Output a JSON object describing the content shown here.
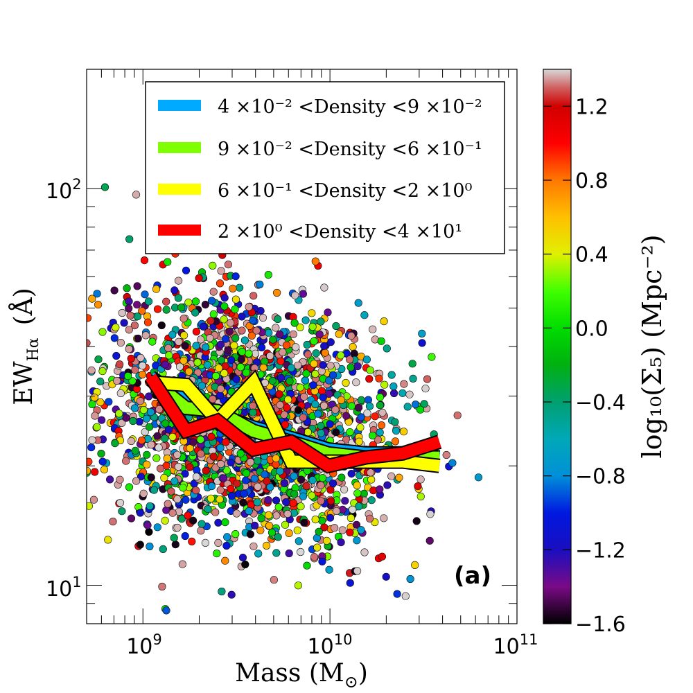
{
  "chart_data": {
    "type": "scatter",
    "xscale": "log",
    "yscale": "log",
    "xlim": [
      500000000,
      100000000000
    ],
    "ylim": [
      8,
      200
    ],
    "x_ticks": [
      {
        "value": 1000000000,
        "mantissa": "10",
        "exponent": "9"
      },
      {
        "value": 10000000000,
        "mantissa": "10",
        "exponent": "10"
      },
      {
        "value": 100000000000,
        "mantissa": "10",
        "exponent": "11"
      }
    ],
    "y_ticks": [
      {
        "value": 10,
        "mantissa": "10",
        "exponent": "1"
      },
      {
        "value": 100,
        "mantissa": "10",
        "exponent": "2"
      }
    ],
    "xlabel": {
      "main": "Mass (M",
      "sub": "⊙",
      "close": ")"
    },
    "ylabel": {
      "main": "EW",
      "sub": "Hα",
      "unit": "(Å)"
    },
    "panel_tag": "(a)",
    "colorbar": {
      "range": [
        -1.6,
        1.4
      ],
      "ticks": [
        "−1.6",
        "−1.2",
        "−0.8",
        "−0.4",
        "0.0",
        "0.4",
        "0.8",
        "1.2"
      ],
      "tick_values": [
        -1.6,
        -1.2,
        -0.8,
        -0.4,
        0.0,
        0.4,
        0.8,
        1.2
      ],
      "label": "log₁₀(Σ₅) (Mpc⁻²)",
      "stops": [
        {
          "v": -1.6,
          "color": "#000000"
        },
        {
          "v": -1.4,
          "color": "#7a0a86"
        },
        {
          "v": -1.2,
          "color": "#1a0ec0"
        },
        {
          "v": -1.0,
          "color": "#0018e0"
        },
        {
          "v": -0.8,
          "color": "#0090d8"
        },
        {
          "v": -0.6,
          "color": "#00a8b8"
        },
        {
          "v": -0.4,
          "color": "#00a070"
        },
        {
          "v": -0.2,
          "color": "#00b010"
        },
        {
          "v": 0.0,
          "color": "#00dc00"
        },
        {
          "v": 0.2,
          "color": "#40ff00"
        },
        {
          "v": 0.4,
          "color": "#e0f000"
        },
        {
          "v": 0.6,
          "color": "#ffc000"
        },
        {
          "v": 0.8,
          "color": "#ff7800"
        },
        {
          "v": 1.0,
          "color": "#ff0000"
        },
        {
          "v": 1.2,
          "color": "#d00000"
        },
        {
          "v": 1.3,
          "color": "#d06060"
        },
        {
          "v": 1.4,
          "color": "#d8d8d8"
        }
      ]
    },
    "series": [
      {
        "name": "4 ×10⁻² <Density <9 ×10⁻²",
        "color": "#00aaff",
        "x": [
          1100000000,
          1700000000,
          2500000000,
          3900000000,
          6200000000,
          9800000000,
          15500000000,
          24500000000,
          38500000000
        ],
        "y": [
          33.5,
          29,
          27,
          25,
          23.5,
          22,
          21.5,
          21.5,
          21
        ]
      },
      {
        "name": "9 ×10⁻² <Density <6 ×10⁻¹",
        "color": "#80ff00",
        "x": [
          1100000000,
          1700000000,
          2500000000,
          3900000000,
          6200000000,
          9800000000,
          15500000000,
          24500000000,
          38500000000
        ],
        "y": [
          33,
          28,
          27.5,
          24.5,
          23,
          21.5,
          21,
          21,
          21
        ]
      },
      {
        "name": "6 ×10⁻¹ <Density <2 ×10⁰",
        "color": "#ffff00",
        "x": [
          1100000000,
          1700000000,
          2500000000,
          3900000000,
          6200000000,
          9800000000,
          15500000000,
          24500000000,
          38500000000
        ],
        "y": [
          32.5,
          32,
          26,
          32.5,
          20.5,
          20.5,
          20.5,
          20.5,
          20
        ]
      },
      {
        "name": "2 ×10⁰ <Density <4 ×10¹",
        "color": "#ff0000",
        "x": [
          1100000000,
          1700000000,
          2500000000,
          3900000000,
          6200000000,
          9800000000,
          15500000000,
          24500000000,
          38500000000
        ],
        "y": [
          33.5,
          24.5,
          26,
          22,
          23,
          20,
          21,
          21.5,
          23
        ]
      }
    ]
  }
}
